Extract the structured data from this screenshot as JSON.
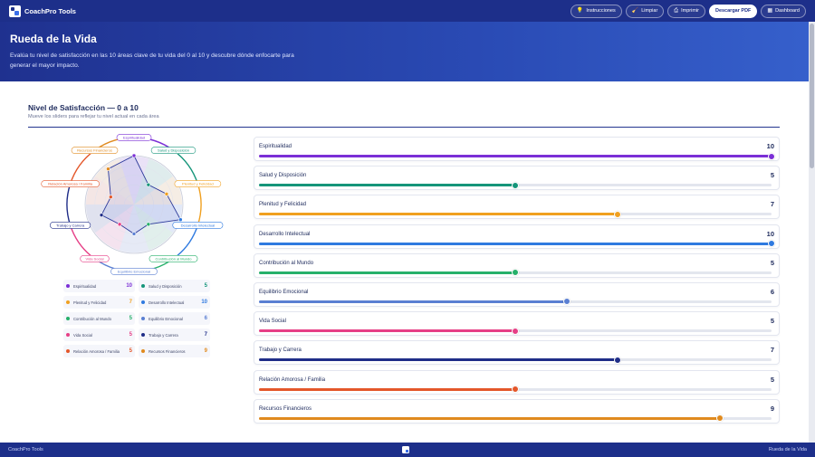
{
  "app": {
    "brand": "CoachPro Tools"
  },
  "nav": {
    "buttons": [
      {
        "label": "Instrucciones",
        "icon": "lightbulb-icon",
        "glyph": "💡",
        "primary": false
      },
      {
        "label": "Limpiar",
        "icon": "broom-icon",
        "glyph": "🧹",
        "primary": false
      },
      {
        "label": "Imprimir",
        "icon": "printer-icon",
        "glyph": "⎙",
        "primary": false
      },
      {
        "label": "Descargar PDF",
        "icon": "download-icon",
        "glyph": "",
        "primary": true
      },
      {
        "label": "Dashboard",
        "icon": "grid-icon",
        "glyph": "▦",
        "primary": false
      }
    ]
  },
  "hero": {
    "title": "Rueda de la Vida",
    "subtitle": "Evalúa tu nivel de satisfacción en las 10 áreas clave de tu vida del 0 al 10 y descubre dónde enfocarte para generar el mayor impacto."
  },
  "section": {
    "title": "Nivel de Satisfacción — 0 a 10",
    "subtitle": "Mueve los sliders para reflejar tu nivel actual en cada área"
  },
  "scale": {
    "min": 0,
    "max": 10
  },
  "areas": [
    {
      "name": "Espiritualidad",
      "value": 10,
      "color": "#7b2fd6"
    },
    {
      "name": "Salud y Disposición",
      "value": 5,
      "color": "#15957a"
    },
    {
      "name": "Plenitud y Felicidad",
      "value": 7,
      "color": "#f0a020"
    },
    {
      "name": "Desarrollo Intelectual",
      "value": 10,
      "color": "#2f7ae0"
    },
    {
      "name": "Contribución al Mundo",
      "value": 5,
      "color": "#26b06a"
    },
    {
      "name": "Equilibrio Emocional",
      "value": 6,
      "color": "#5a7fd2"
    },
    {
      "name": "Vida Social",
      "value": 5,
      "color": "#e63f86"
    },
    {
      "name": "Trabajo y Carrera",
      "value": 7,
      "color": "#1f2d88"
    },
    {
      "name": "Relación Amorosa / Familia",
      "value": 5,
      "color": "#e4572a"
    },
    {
      "name": "Recursos Financieros",
      "value": 9,
      "color": "#e08a1e"
    }
  ],
  "footer": {
    "left": "CoachPro Tools",
    "right": "Rueda de la Vida"
  }
}
